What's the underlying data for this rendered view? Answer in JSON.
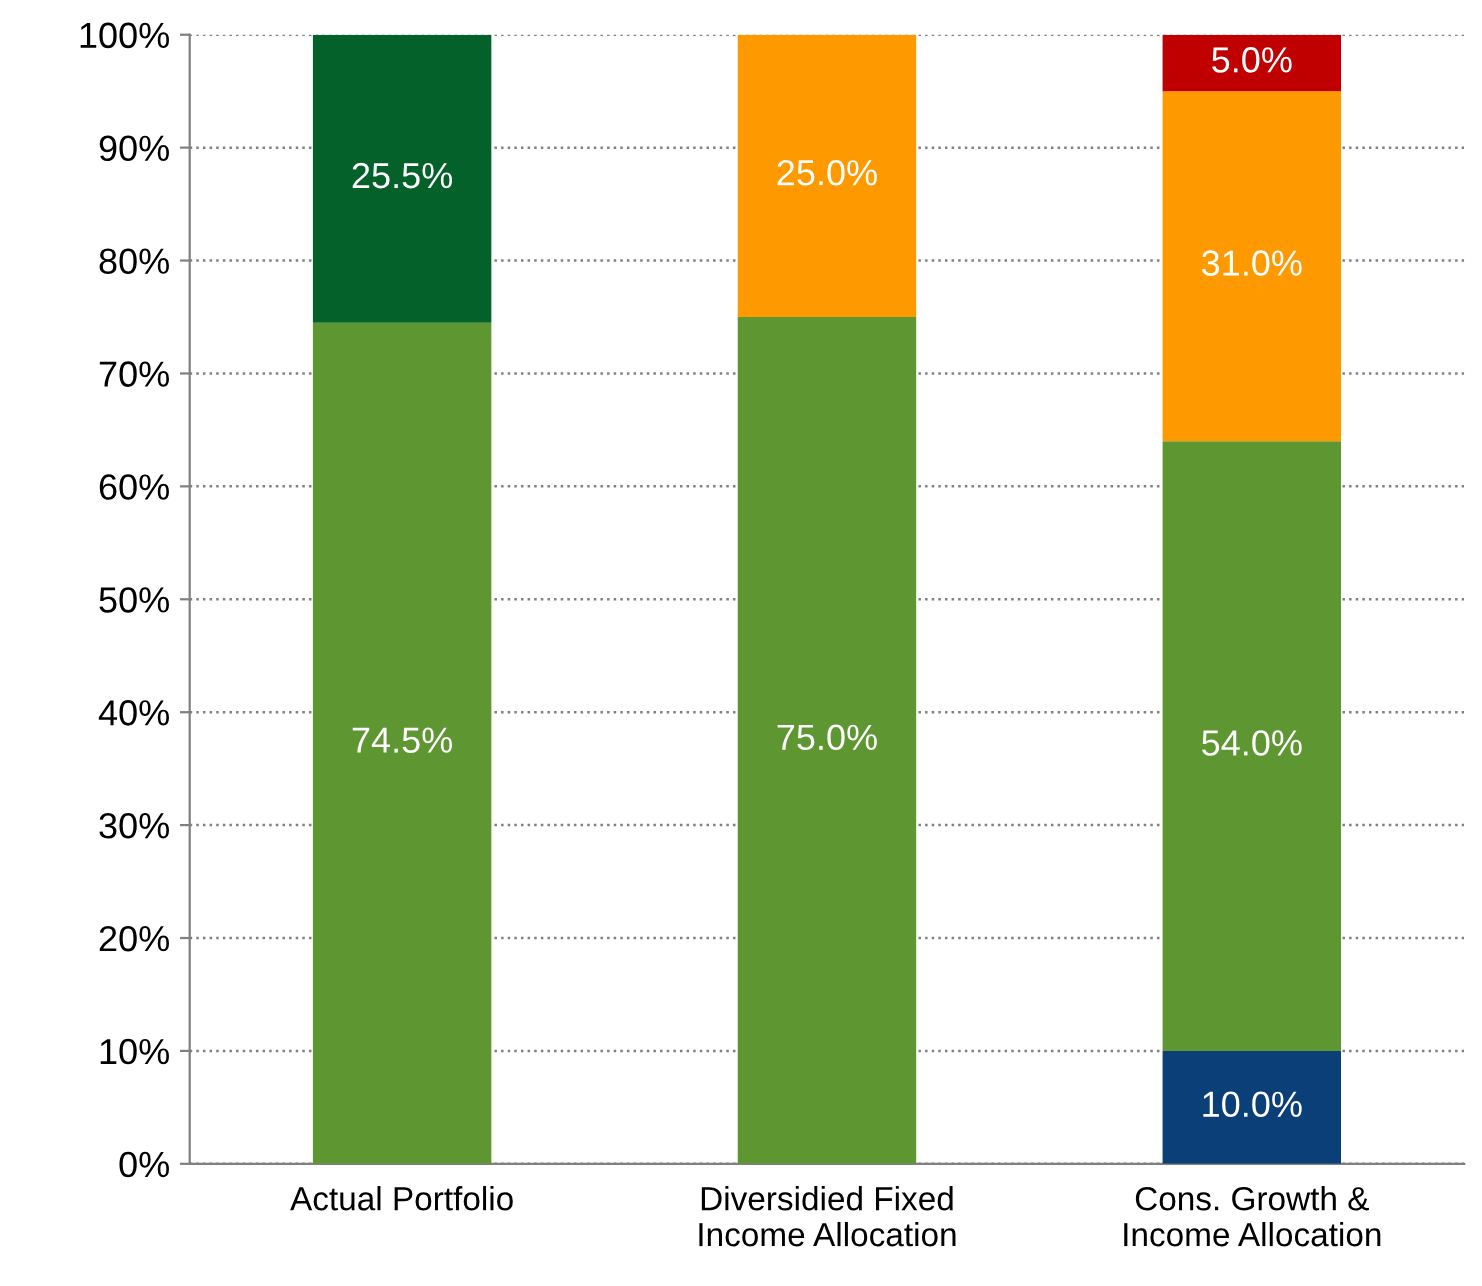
{
  "chart_data": {
    "type": "bar",
    "stacked": true,
    "categories": [
      "Actual Portfolio",
      "Diversidied Fixed\nIncome Allocation",
      "Cons. Growth &\nIncome Allocation"
    ],
    "series": [
      {
        "color": "#0a3f78",
        "values": [
          null,
          null,
          10.0
        ],
        "value_labels": [
          null,
          null,
          "10.0%"
        ]
      },
      {
        "color": "#5e9732",
        "values": [
          74.5,
          75.0,
          54.0
        ],
        "value_labels": [
          "74.5%",
          "75.0%",
          "54.0%"
        ]
      },
      {
        "color": "#04612a",
        "values": [
          25.5,
          null,
          null
        ],
        "value_labels": [
          "25.5%",
          null,
          null
        ]
      },
      {
        "color": "#fe9900",
        "values": [
          null,
          25.0,
          31.0
        ],
        "value_labels": [
          null,
          "25.0%",
          "31.0%"
        ]
      },
      {
        "color": "#c00000",
        "values": [
          null,
          null,
          5.0
        ],
        "value_labels": [
          null,
          null,
          "5.0%"
        ]
      }
    ],
    "ylim": [
      0,
      100
    ],
    "yticks": [
      {
        "value": 0,
        "label": "0%"
      },
      {
        "value": 10,
        "label": "10%"
      },
      {
        "value": 20,
        "label": "20%"
      },
      {
        "value": 30,
        "label": "30%"
      },
      {
        "value": 40,
        "label": "40%"
      },
      {
        "value": 50,
        "label": "50%"
      },
      {
        "value": 60,
        "label": "60%"
      },
      {
        "value": 70,
        "label": "70%"
      },
      {
        "value": 80,
        "label": "80%"
      },
      {
        "value": 90,
        "label": "90%"
      },
      {
        "value": 100,
        "label": "100%"
      }
    ],
    "grid": "y",
    "legend": false
  }
}
